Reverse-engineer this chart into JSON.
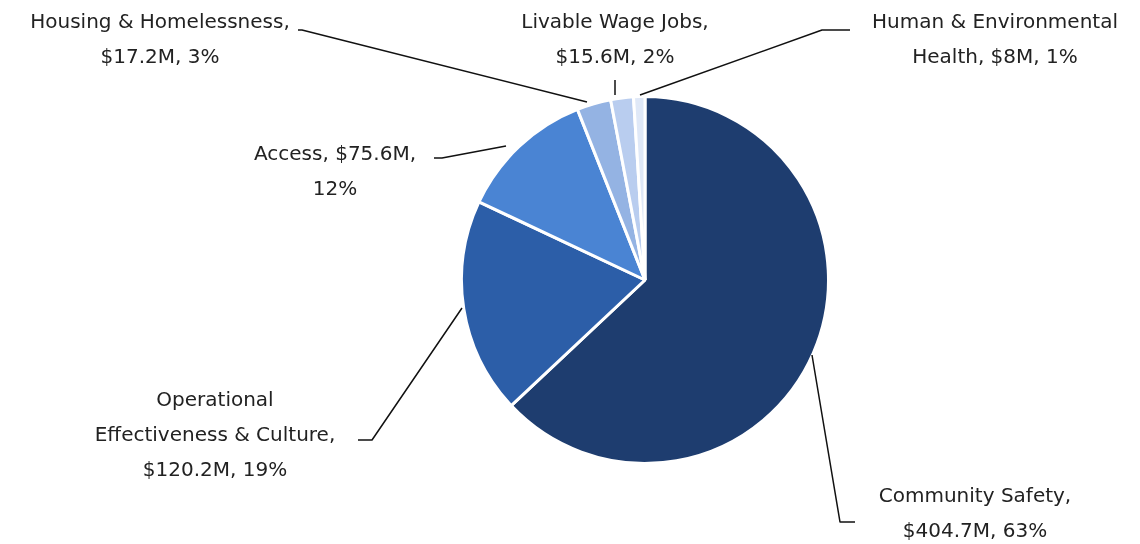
{
  "chart_data": {
    "type": "pie",
    "categories": [
      "Community Safety, $404.7M, 63%",
      "Operational Effectiveness & Culture, $120.2M, 19%",
      "Access, $75.6M, 12%",
      "Housing & Homelessness, $17.2M, 3%",
      "Livable Wage Jobs, $15.6M, 2%",
      "Human & Environmental Health, $8M, 1%"
    ],
    "values": [
      63,
      19,
      12,
      3,
      2,
      1
    ],
    "colors": [
      "#1e3d6f",
      "#2c5ea8",
      "#4a84d3",
      "#94b3e3",
      "#b9cdef",
      "#dfe8f7"
    ],
    "legend": false
  }
}
